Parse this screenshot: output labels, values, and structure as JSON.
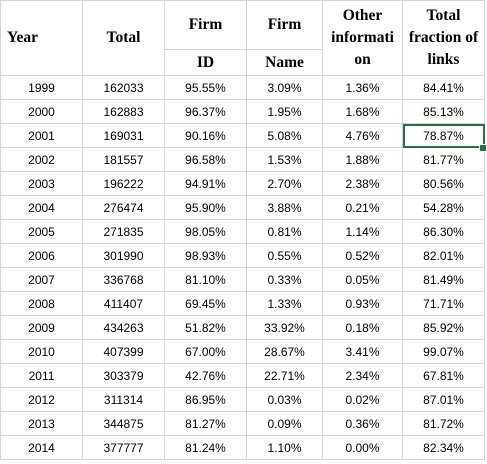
{
  "headers": {
    "year": "Year",
    "total": "Total",
    "firm_id_top": "Firm",
    "firm_id_bottom": "ID",
    "firm_name_top": "Firm",
    "firm_name_bottom": "Name",
    "other": "Other informati on",
    "fraction": "Total fraction of links"
  },
  "rows": [
    {
      "year": "1999",
      "total": "162033",
      "firm_id": "95.55%",
      "firm_name": "3.09%",
      "other": "1.36%",
      "fraction": "84.41%"
    },
    {
      "year": "2000",
      "total": "162883",
      "firm_id": "96.37%",
      "firm_name": "1.95%",
      "other": "1.68%",
      "fraction": "85.13%"
    },
    {
      "year": "2001",
      "total": "169031",
      "firm_id": "90.16%",
      "firm_name": "5.08%",
      "other": "4.76%",
      "fraction": "78.87%"
    },
    {
      "year": "2002",
      "total": "181557",
      "firm_id": "96.58%",
      "firm_name": "1.53%",
      "other": "1.88%",
      "fraction": "81.77%"
    },
    {
      "year": "2003",
      "total": "196222",
      "firm_id": "94.91%",
      "firm_name": "2.70%",
      "other": "2.38%",
      "fraction": "80.56%"
    },
    {
      "year": "2004",
      "total": "276474",
      "firm_id": "95.90%",
      "firm_name": "3.88%",
      "other": "0.21%",
      "fraction": "54.28%"
    },
    {
      "year": "2005",
      "total": "271835",
      "firm_id": "98.05%",
      "firm_name": "0.81%",
      "other": "1.14%",
      "fraction": "86.30%"
    },
    {
      "year": "2006",
      "total": "301990",
      "firm_id": "98.93%",
      "firm_name": "0.55%",
      "other": "0.52%",
      "fraction": "82.01%"
    },
    {
      "year": "2007",
      "total": "336768",
      "firm_id": "81.10%",
      "firm_name": "0.33%",
      "other": "0.05%",
      "fraction": "81.49%"
    },
    {
      "year": "2008",
      "total": "411407",
      "firm_id": "69.45%",
      "firm_name": "1.33%",
      "other": "0.93%",
      "fraction": "71.71%"
    },
    {
      "year": "2009",
      "total": "434263",
      "firm_id": "51.82%",
      "firm_name": "33.92%",
      "other": "0.18%",
      "fraction": "85.92%"
    },
    {
      "year": "2010",
      "total": "407399",
      "firm_id": "67.00%",
      "firm_name": "28.67%",
      "other": "3.41%",
      "fraction": "99.07%"
    },
    {
      "year": "2011",
      "total": "303379",
      "firm_id": "42.76%",
      "firm_name": "22.71%",
      "other": "2.34%",
      "fraction": "67.81%"
    },
    {
      "year": "2012",
      "total": "311314",
      "firm_id": "86.95%",
      "firm_name": "0.03%",
      "other": "0.02%",
      "fraction": "87.01%"
    },
    {
      "year": "2013",
      "total": "344875",
      "firm_id": "81.27%",
      "firm_name": "0.09%",
      "other": "0.36%",
      "fraction": "81.72%"
    },
    {
      "year": "2014",
      "total": "377777",
      "firm_id": "81.24%",
      "firm_name": "1.10%",
      "other": "0.00%",
      "fraction": "82.34%"
    }
  ],
  "selection": {
    "row_index": 2,
    "column": "fraction",
    "color": "#217346"
  }
}
